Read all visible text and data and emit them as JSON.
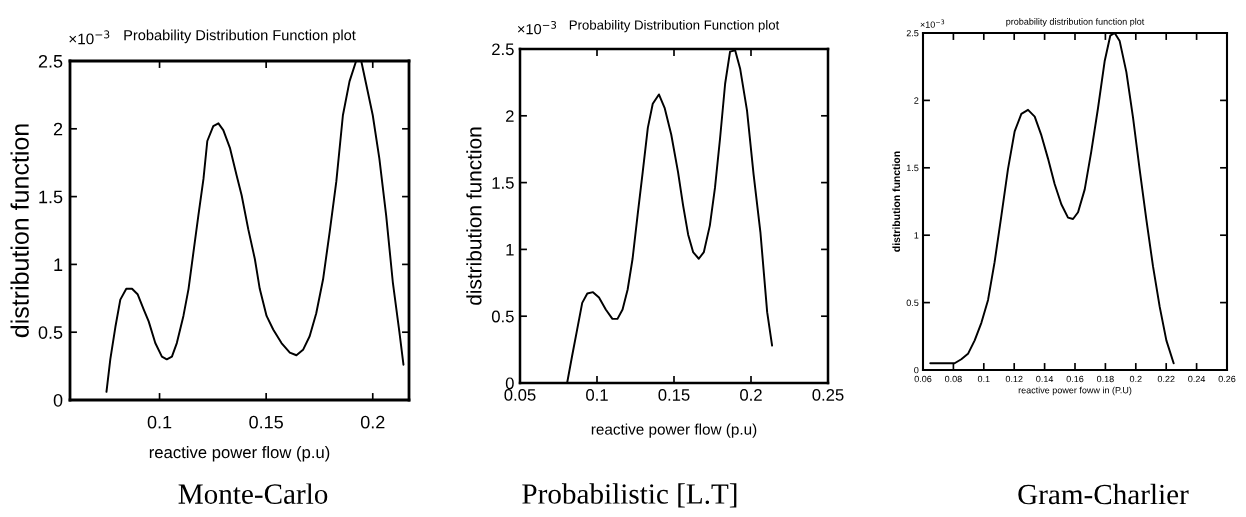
{
  "chart_data": [
    {
      "type": "line",
      "title": "Probability Distribution Function plot",
      "xlabel": "reactive power flow (p.u)",
      "ylabel": "distribution function",
      "annotations": [
        "×10$^{−3}$",
        "Monte-Carlo"
      ],
      "x": [
        0.0751,
        0.0769,
        0.0793,
        0.0816,
        0.0844,
        0.0871,
        0.0897,
        0.0925,
        0.0949,
        0.098,
        0.1011,
        0.1034,
        0.1058,
        0.1081,
        0.1112,
        0.1136,
        0.1159,
        0.1182,
        0.1206,
        0.1224,
        0.1252,
        0.1276,
        0.1299,
        0.133,
        0.1361,
        0.1385,
        0.1416,
        0.1447,
        0.147,
        0.1502,
        0.1533,
        0.1572,
        0.1611,
        0.1642,
        0.1673,
        0.1704,
        0.1735,
        0.1767,
        0.1798,
        0.1829,
        0.186,
        0.1891,
        0.1922,
        0.1946,
        0.1969,
        0.2,
        0.2031,
        0.2063,
        0.2094,
        0.2125,
        0.2144
      ],
      "series": [
        {
          "color": "#000000",
          "values": [
            0.06,
            0.3,
            0.54,
            0.74,
            0.82,
            0.82,
            0.78,
            0.67,
            0.58,
            0.42,
            0.32,
            0.3,
            0.32,
            0.42,
            0.62,
            0.82,
            1.09,
            1.36,
            1.63,
            1.91,
            2.02,
            2.04,
            1.99,
            1.86,
            1.66,
            1.51,
            1.26,
            1.04,
            0.82,
            0.62,
            0.52,
            0.42,
            0.35,
            0.33,
            0.37,
            0.47,
            0.64,
            0.89,
            1.24,
            1.61,
            2.1,
            2.35,
            2.5,
            2.5,
            2.33,
            2.1,
            1.78,
            1.36,
            0.87,
            0.5,
            0.26
          ]
        }
      ],
      "xlim": [
        0.058,
        0.217
      ],
      "xticks": [
        0.1,
        0.15,
        0.2
      ],
      "ylim": [
        0,
        2.5
      ],
      "yticks": [
        0,
        0.5,
        1,
        1.5,
        2,
        2.5
      ]
    },
    {
      "type": "line",
      "title": "Probability Distribution Function plot",
      "xlabel": "reactive power flow (p.u)",
      "ylabel": "distribution function",
      "annotations": [
        "×10$^{−3}$",
        "Probabilistic [L.T]"
      ],
      "x": [
        0.0806,
        0.0838,
        0.0871,
        0.0904,
        0.0937,
        0.0974,
        0.1013,
        0.1057,
        0.11,
        0.1133,
        0.1166,
        0.1199,
        0.1231,
        0.1264,
        0.1297,
        0.133,
        0.1362,
        0.1402,
        0.1439,
        0.1482,
        0.1526,
        0.1559,
        0.1592,
        0.1624,
        0.1661,
        0.1694,
        0.1733,
        0.1766,
        0.1799,
        0.1832,
        0.1864,
        0.1897,
        0.193,
        0.1974,
        0.2017,
        0.2061,
        0.2105,
        0.2137
      ],
      "series": [
        {
          "color": "#000000",
          "values": [
            0,
            0.2,
            0.4,
            0.6,
            0.67,
            0.68,
            0.64,
            0.55,
            0.48,
            0.48,
            0.55,
            0.7,
            0.93,
            1.26,
            1.58,
            1.91,
            2.09,
            2.16,
            2.06,
            1.86,
            1.58,
            1.33,
            1.11,
            0.98,
            0.93,
            0.98,
            1.18,
            1.46,
            1.83,
            2.24,
            2.48,
            2.49,
            2.35,
            2.04,
            1.56,
            1.13,
            0.53,
            0.28
          ]
        }
      ],
      "xlim": [
        0.05,
        0.25
      ],
      "xticks": [
        0.05,
        0.1,
        0.15,
        0.2,
        0.25
      ],
      "ylim": [
        0,
        2.5
      ],
      "yticks": [
        0,
        0.5,
        1,
        1.5,
        2,
        2.5
      ]
    },
    {
      "type": "line",
      "title": "probability distribution function plot",
      "xlabel": "reactive power foww in (P.U)",
      "ylabel": "distribution function",
      "annotations": [
        "×10$^{−3}$",
        "Gram-Charlier"
      ],
      "x": [
        0.0648,
        0.0732,
        0.0808,
        0.0852,
        0.0896,
        0.094,
        0.0984,
        0.1028,
        0.1071,
        0.1115,
        0.1159,
        0.1203,
        0.1247,
        0.1291,
        0.1335,
        0.1379,
        0.1422,
        0.1466,
        0.151,
        0.1554,
        0.1587,
        0.162,
        0.1664,
        0.1707,
        0.1751,
        0.1795,
        0.1832,
        0.1861,
        0.1894,
        0.1938,
        0.1982,
        0.2025,
        0.2069,
        0.2113,
        0.2157,
        0.2201,
        0.2249
      ],
      "series": [
        {
          "color": "#000000",
          "values": [
            0.05,
            0.05,
            0.05,
            0.08,
            0.12,
            0.22,
            0.35,
            0.52,
            0.8,
            1.14,
            1.49,
            1.77,
            1.9,
            1.93,
            1.88,
            1.74,
            1.57,
            1.38,
            1.23,
            1.13,
            1.12,
            1.17,
            1.34,
            1.62,
            1.94,
            2.29,
            2.48,
            2.5,
            2.44,
            2.21,
            1.87,
            1.49,
            1.12,
            0.77,
            0.47,
            0.22,
            0.05
          ]
        }
      ],
      "xlim": [
        0.06,
        0.26
      ],
      "xticks": [
        0.06,
        0.08,
        0.1,
        0.12,
        0.14,
        0.16,
        0.18,
        0.2,
        0.22,
        0.24,
        0.26
      ],
      "ylim": [
        0,
        2.5
      ],
      "yticks": [
        0,
        0.5,
        1,
        1.5,
        2,
        2.5
      ]
    }
  ]
}
